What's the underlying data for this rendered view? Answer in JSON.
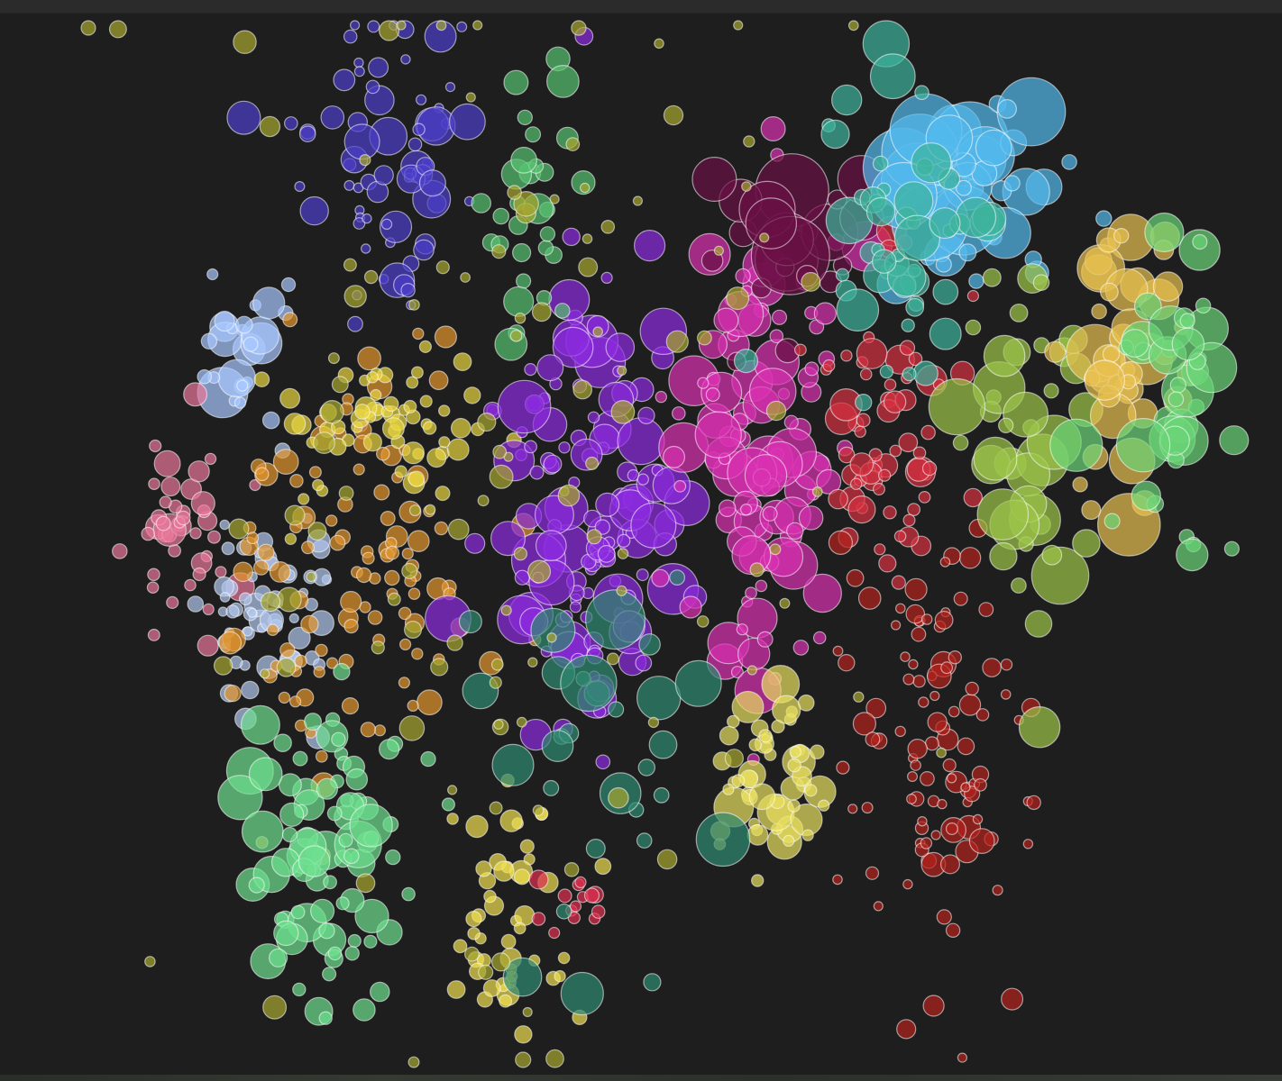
{
  "window": {
    "title": ""
  },
  "chart_data": {
    "type": "scatter",
    "title": "",
    "xlabel": "",
    "ylabel": "",
    "grid": false,
    "axes_visible": false,
    "legend": "none",
    "xlim": [
      0,
      100
    ],
    "ylim": [
      0,
      100
    ],
    "encoding": {
      "size": "bubble radius",
      "color": "cluster",
      "opacity": 0.7
    },
    "clusters": [
      {
        "color": "#4b3fc9",
        "cx": 30.2,
        "cy": 86.6,
        "sx": 3.2,
        "sy": 8.5,
        "count": 70,
        "rmin": 5,
        "rmax": 22
      },
      {
        "color": "#a8c8ff",
        "cx": 18.8,
        "cy": 69.0,
        "sx": 1.8,
        "sy": 3.5,
        "count": 26,
        "rmin": 6,
        "rmax": 28
      },
      {
        "color": "#e8779a",
        "cx": 14.1,
        "cy": 52.3,
        "sx": 1.8,
        "sy": 4.2,
        "count": 42,
        "rmin": 6,
        "rmax": 20
      },
      {
        "color": "#b2c7ee",
        "cx": 21.1,
        "cy": 44.2,
        "sx": 2.6,
        "sy": 5.0,
        "count": 58,
        "rmin": 5,
        "rmax": 14
      },
      {
        "color": "#e3962e",
        "cx": 28.1,
        "cy": 47.0,
        "sx": 5.2,
        "sy": 11.0,
        "count": 110,
        "rmin": 6,
        "rmax": 14
      },
      {
        "color": "#e8d640",
        "cx": 30.2,
        "cy": 61.3,
        "sx": 4.2,
        "sy": 4.0,
        "count": 60,
        "rmin": 6,
        "rmax": 12
      },
      {
        "color": "#6ee08f",
        "cx": 25.3,
        "cy": 22.5,
        "sx": 3.2,
        "sy": 7.0,
        "count": 85,
        "rmin": 7,
        "rmax": 26
      },
      {
        "color": "#f0e050",
        "cx": 40.1,
        "cy": 14.0,
        "sx": 2.4,
        "sy": 5.5,
        "count": 48,
        "rmin": 6,
        "rmax": 13
      },
      {
        "color": "#e03050",
        "cx": 45.0,
        "cy": 16.1,
        "sx": 1.6,
        "sy": 1.8,
        "count": 14,
        "rmin": 6,
        "rmax": 12
      },
      {
        "color": "#8b2be0",
        "cx": 46.4,
        "cy": 53.1,
        "sx": 3.5,
        "sy": 11.5,
        "count": 130,
        "rmin": 6,
        "rmax": 30
      },
      {
        "color": "#d830b0",
        "cx": 59.1,
        "cy": 56.7,
        "sx": 3.3,
        "sy": 11.5,
        "count": 110,
        "rmin": 6,
        "rmax": 28
      },
      {
        "color": "#6a1044",
        "cx": 60.5,
        "cy": 77.2,
        "sx": 3.2,
        "sy": 4.8,
        "count": 22,
        "rmin": 10,
        "rmax": 44
      },
      {
        "color": "#d63040",
        "cx": 68.9,
        "cy": 59.4,
        "sx": 2.4,
        "sy": 7.5,
        "count": 65,
        "rmin": 6,
        "rmax": 18
      },
      {
        "color": "#b3221d",
        "cx": 73.1,
        "cy": 31.5,
        "sx": 3.4,
        "sy": 11.0,
        "count": 105,
        "rmin": 5,
        "rmax": 14
      },
      {
        "color": "#e8df60",
        "cx": 61.2,
        "cy": 28.4,
        "sx": 2.5,
        "sy": 4.2,
        "count": 55,
        "rmin": 6,
        "rmax": 22
      },
      {
        "color": "#52b9ec",
        "cx": 75.9,
        "cy": 84.2,
        "sx": 3.5,
        "sy": 4.8,
        "count": 45,
        "rmin": 8,
        "rmax": 44
      },
      {
        "color": "#3db49c",
        "cx": 70.3,
        "cy": 78.8,
        "sx": 3.5,
        "sy": 7.0,
        "count": 50,
        "rmin": 7,
        "rmax": 26
      },
      {
        "color": "#9cc448",
        "cx": 79.4,
        "cy": 60.3,
        "sx": 3.0,
        "sy": 9.0,
        "count": 40,
        "rmin": 8,
        "rmax": 32
      },
      {
        "color": "#e8c050",
        "cx": 87.9,
        "cy": 69.0,
        "sx": 2.0,
        "sy": 7.5,
        "count": 45,
        "rmin": 8,
        "rmax": 36
      },
      {
        "color": "#6bd677",
        "cx": 91.4,
        "cy": 65.3,
        "sx": 1.8,
        "sy": 6.8,
        "count": 40,
        "rmin": 8,
        "rmax": 30
      },
      {
        "color": "#57c271",
        "cx": 41.5,
        "cy": 80.3,
        "sx": 2.3,
        "sy": 8.0,
        "count": 30,
        "rmin": 8,
        "rmax": 18
      },
      {
        "color": "#2f8a70",
        "cx": 48.5,
        "cy": 28.4,
        "sx": 4.2,
        "sy": 12.0,
        "count": 30,
        "rmin": 8,
        "rmax": 34
      },
      {
        "color": "#a8a830",
        "cx": 42.2,
        "cy": 55.0,
        "sx": 13.0,
        "sy": 28.0,
        "count": 120,
        "rmin": 5,
        "rmax": 14
      }
    ]
  }
}
